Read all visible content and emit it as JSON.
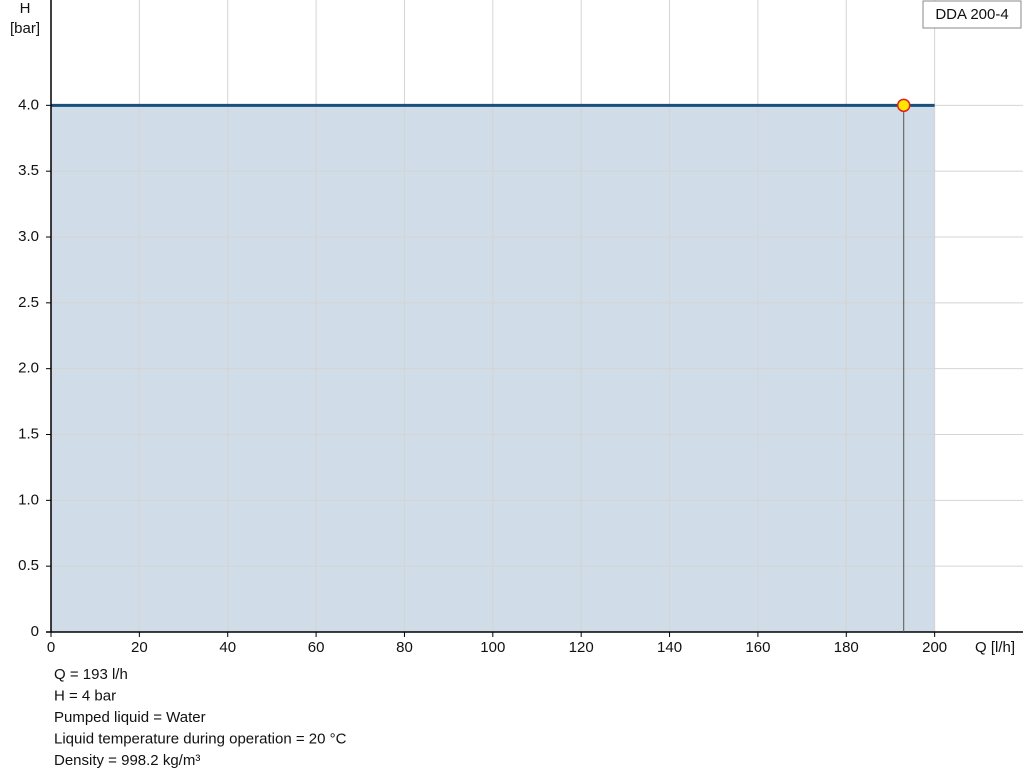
{
  "chart_data": {
    "type": "line",
    "x": [
      0,
      200
    ],
    "series": [
      {
        "name": "DDA 200-4",
        "color": "#1a4f7a",
        "values": [
          4,
          4
        ]
      }
    ],
    "area_color": "#d0dce7",
    "operating_point": {
      "x": 193,
      "y": 4,
      "color": "#ffe600",
      "edge": "#e02020"
    },
    "xlim": [
      0,
      220
    ],
    "xticks": [
      0,
      20,
      40,
      60,
      80,
      100,
      120,
      140,
      160,
      180,
      200
    ],
    "ylim": [
      0,
      4.8
    ],
    "yticks": [
      0,
      0.5,
      {
        "value": 1,
        "label": "1.0"
      },
      1.5,
      {
        "value": 2,
        "label": "2.0"
      },
      2.5,
      {
        "value": 3,
        "label": "3.0"
      },
      3.5,
      {
        "value": 4,
        "label": "4.0"
      }
    ],
    "y_label": [
      "H",
      "[bar]"
    ],
    "x_label": "Q [l/h]",
    "grid": true,
    "notes": [
      "Q = 193 l/h",
      "H = 4 bar",
      "Pumped liquid = Water",
      "Liquid temperature during operation = 20 °C",
      "Density = 998.2 kg/m³"
    ]
  }
}
